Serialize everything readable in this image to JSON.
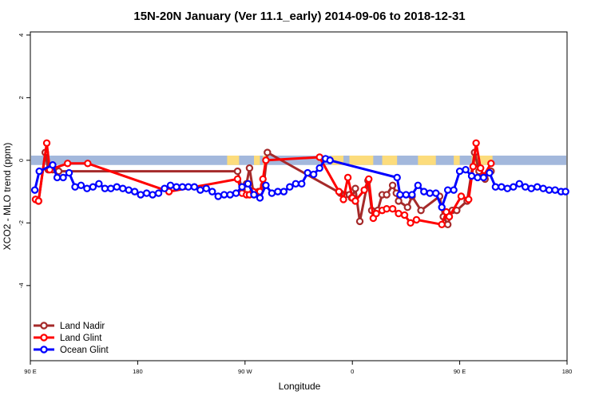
{
  "chart_data": {
    "type": "line",
    "title": "15N-20N January (Ver 11.1_early)   2014-09-06 to 2018-12-31",
    "xlabel": "Longitude",
    "ylabel": "XCO2 - MLO trend (ppm)",
    "xlim": [
      90,
      450
    ],
    "ylim": [
      -6.4,
      4.1
    ],
    "x_ticks": [
      {
        "value": 90,
        "label": "90 E"
      },
      {
        "value": 162,
        "label": "180"
      },
      {
        "value": 234,
        "label": "90 W"
      },
      {
        "value": 306,
        "label": "0"
      },
      {
        "value": 378,
        "label": "90 E"
      },
      {
        "value": 450,
        "label": "180"
      }
    ],
    "y_ticks": [
      {
        "value": 4,
        "label": "4"
      },
      {
        "value": 2,
        "label": "2"
      },
      {
        "value": 0,
        "label": "0"
      },
      {
        "value": -2,
        "label": "-2"
      },
      {
        "value": -4,
        "label": "-4"
      }
    ],
    "legend_position": "bottom-left",
    "band": {
      "y_center": 0,
      "half_width": 0.15,
      "color": "#a3b8dc",
      "land_color": "#fcdc7c",
      "land_intervals": [
        [
          222,
          230
        ],
        [
          240,
          244
        ],
        [
          246,
          248
        ],
        [
          292,
          300
        ],
        [
          304,
          320
        ],
        [
          326,
          336
        ],
        [
          350,
          362
        ],
        [
          374,
          378
        ],
        [
          386,
          400
        ]
      ]
    },
    "series": [
      {
        "name": "Land Nadir",
        "color": "#a52a2a",
        "points": [
          [
            93.5,
            -1.25
          ],
          [
            95.5,
            -1.3
          ],
          [
            100,
            0.25
          ],
          [
            102,
            -0.3
          ],
          [
            105,
            -0.3
          ],
          [
            109,
            -0.35
          ],
          [
            229,
            -0.35
          ],
          [
            232,
            -0.95
          ],
          [
            235,
            -0.75
          ],
          [
            237,
            -0.25
          ],
          [
            239.5,
            -1.0
          ],
          [
            243,
            -1.0
          ],
          [
            246.5,
            -0.8
          ],
          [
            249,
            0.25
          ],
          [
            298,
            -1.05
          ],
          [
            301,
            -1.1
          ],
          [
            304,
            -1.1
          ],
          [
            305.5,
            -1.2
          ],
          [
            308,
            -0.9
          ],
          [
            311,
            -1.95
          ],
          [
            316.5,
            -0.65
          ],
          [
            319,
            -1.6
          ],
          [
            323,
            -1.6
          ],
          [
            326,
            -1.1
          ],
          [
            329,
            -1.1
          ],
          [
            333,
            -0.8
          ],
          [
            335.5,
            -1.05
          ],
          [
            337,
            -1.3
          ],
          [
            343,
            -1.5
          ],
          [
            346,
            -1.15
          ],
          [
            352,
            -1.6
          ],
          [
            364.5,
            -1.15
          ],
          [
            367,
            -1.8
          ],
          [
            370,
            -2.05
          ],
          [
            373,
            -1.6
          ],
          [
            376,
            -1.6
          ],
          [
            383,
            -1.3
          ],
          [
            388,
            0.25
          ],
          [
            391,
            -0.35
          ],
          [
            395,
            -0.6
          ],
          [
            399,
            -0.35
          ]
        ]
      },
      {
        "name": "Land Glint",
        "color": "#ff0000",
        "points": [
          [
            93.5,
            -1.25
          ],
          [
            95.5,
            -1.3
          ],
          [
            101,
            0.55
          ],
          [
            103,
            -0.3
          ],
          [
            115,
            -0.1
          ],
          [
            128.5,
            -0.1
          ],
          [
            183,
            -1.0
          ],
          [
            229,
            -0.6
          ],
          [
            232,
            -1.05
          ],
          [
            235,
            -1.1
          ],
          [
            237,
            -1.1
          ],
          [
            239.5,
            -1.0
          ],
          [
            244,
            -1.0
          ],
          [
            246,
            -0.6
          ],
          [
            248,
            0.0
          ],
          [
            284,
            0.1
          ],
          [
            297,
            -1.0
          ],
          [
            300,
            -1.25
          ],
          [
            303,
            -0.55
          ],
          [
            306,
            -1.2
          ],
          [
            308,
            -1.3
          ],
          [
            314,
            -0.95
          ],
          [
            317,
            -0.6
          ],
          [
            320,
            -1.85
          ],
          [
            322,
            -1.7
          ],
          [
            326,
            -1.6
          ],
          [
            329,
            -1.55
          ],
          [
            333,
            -1.55
          ],
          [
            337,
            -1.7
          ],
          [
            341,
            -1.75
          ],
          [
            345,
            -2.0
          ],
          [
            349,
            -1.9
          ],
          [
            366,
            -2.05
          ],
          [
            369,
            -1.65
          ],
          [
            371,
            -1.8
          ],
          [
            379,
            -1.15
          ],
          [
            384,
            -1.25
          ],
          [
            387,
            -0.2
          ],
          [
            389,
            0.55
          ],
          [
            392,
            -0.25
          ],
          [
            394,
            -0.5
          ],
          [
            399,
            -0.1
          ]
        ]
      },
      {
        "name": "Ocean Glint",
        "color": "#0000ff",
        "points": [
          [
            93,
            -0.95
          ],
          [
            96,
            -0.35
          ],
          [
            105,
            -0.15
          ],
          [
            108,
            -0.55
          ],
          [
            112,
            -0.55
          ],
          [
            116,
            -0.4
          ],
          [
            120,
            -0.85
          ],
          [
            124,
            -0.8
          ],
          [
            128,
            -0.9
          ],
          [
            132,
            -0.85
          ],
          [
            136,
            -0.75
          ],
          [
            140,
            -0.9
          ],
          [
            144,
            -0.9
          ],
          [
            148,
            -0.85
          ],
          [
            152,
            -0.9
          ],
          [
            156,
            -0.95
          ],
          [
            160,
            -1.0
          ],
          [
            164,
            -1.1
          ],
          [
            168,
            -1.05
          ],
          [
            172,
            -1.1
          ],
          [
            176,
            -1.05
          ],
          [
            180,
            -0.9
          ],
          [
            184,
            -0.8
          ],
          [
            188,
            -0.85
          ],
          [
            192,
            -0.85
          ],
          [
            196,
            -0.85
          ],
          [
            200,
            -0.85
          ],
          [
            204,
            -0.95
          ],
          [
            208,
            -0.9
          ],
          [
            212,
            -1.0
          ],
          [
            216,
            -1.15
          ],
          [
            220,
            -1.1
          ],
          [
            224,
            -1.1
          ],
          [
            228,
            -1.05
          ],
          [
            232,
            -0.85
          ],
          [
            236,
            -0.75
          ],
          [
            240,
            -1.1
          ],
          [
            244,
            -1.2
          ],
          [
            248,
            -0.8
          ],
          [
            252,
            -1.05
          ],
          [
            256,
            -1.0
          ],
          [
            260,
            -1.0
          ],
          [
            264,
            -0.85
          ],
          [
            268,
            -0.75
          ],
          [
            272,
            -0.75
          ],
          [
            276,
            -0.4
          ],
          [
            280,
            -0.45
          ],
          [
            284,
            -0.25
          ],
          [
            288,
            0.05
          ],
          [
            291,
            0.0
          ],
          [
            336,
            -0.55
          ],
          [
            338,
            -1.1
          ],
          [
            342,
            -1.1
          ],
          [
            346,
            -1.1
          ],
          [
            350,
            -0.8
          ],
          [
            354,
            -1.0
          ],
          [
            358,
            -1.05
          ],
          [
            362,
            -1.05
          ],
          [
            366,
            -1.5
          ],
          [
            370,
            -0.95
          ],
          [
            374,
            -0.95
          ],
          [
            378,
            -0.35
          ],
          [
            382,
            -0.3
          ],
          [
            386,
            -0.5
          ],
          [
            390,
            -0.55
          ],
          [
            394,
            -0.55
          ],
          [
            398,
            -0.4
          ],
          [
            402,
            -0.85
          ],
          [
            406,
            -0.85
          ],
          [
            410,
            -0.9
          ],
          [
            414,
            -0.85
          ],
          [
            418,
            -0.75
          ],
          [
            422,
            -0.85
          ],
          [
            426,
            -0.9
          ],
          [
            430,
            -0.85
          ],
          [
            434,
            -0.9
          ],
          [
            438,
            -0.95
          ],
          [
            442,
            -0.95
          ],
          [
            446,
            -1.0
          ],
          [
            449,
            -1.0
          ]
        ]
      }
    ]
  }
}
